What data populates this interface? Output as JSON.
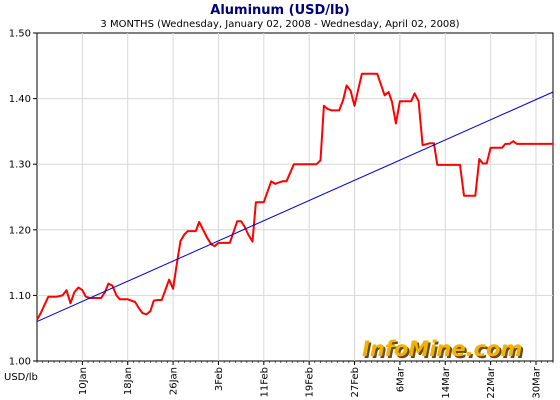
{
  "chart_data": {
    "type": "line",
    "title": "Aluminum (USD/lb)",
    "subtitle": "3 MONTHS (Wednesday, January 02, 2008  -  Wednesday, April 02, 2008)",
    "ylabel": "USD/lb",
    "xlabel": "",
    "ylim": [
      1.0,
      1.5
    ],
    "yticks": [
      "1.00",
      "1.10",
      "1.20",
      "1.30",
      "1.40",
      "1.50"
    ],
    "xlim_days": [
      0,
      91
    ],
    "x_tick_labels": [
      {
        "label": "10Jan",
        "day": 8
      },
      {
        "label": "18Jan",
        "day": 16
      },
      {
        "label": "26Jan",
        "day": 24
      },
      {
        "label": "3Feb",
        "day": 32
      },
      {
        "label": "11Feb",
        "day": 40
      },
      {
        "label": "19Feb",
        "day": 48
      },
      {
        "label": "27Feb",
        "day": 56
      },
      {
        "label": "6Mar",
        "day": 64
      },
      {
        "label": "14Mar",
        "day": 72
      },
      {
        "label": "22Mar",
        "day": 80
      },
      {
        "label": "30Mar",
        "day": 88
      }
    ],
    "grid": true,
    "colors": {
      "price": "#ff0000",
      "trend": "#0000cc",
      "grid": "#d8d8d8",
      "title": "#00007a"
    },
    "series": [
      {
        "type": "line",
        "color": "#ff0000",
        "x_day": [
          0,
          0.6,
          1.3,
          2.0,
          3.5,
          4.5,
          5.2,
          5.9,
          6.6,
          7.3,
          8.0,
          8.6,
          9.3,
          10.0,
          11.3,
          12.0,
          12.6,
          13.3,
          14.0,
          14.6,
          15.3,
          16.0,
          17.3,
          18.0,
          18.6,
          19.3,
          20.0,
          20.6,
          21.3,
          22.0,
          23.3,
          24.0,
          24.6,
          25.3,
          26.0,
          26.6,
          27.3,
          28.0,
          28.6,
          30.0,
          30.7,
          31.3,
          32.0,
          32.6,
          33.3,
          34.0,
          35.3,
          36.0,
          36.6,
          37.3,
          38.0,
          38.6,
          39.3,
          40.0,
          41.3,
          42.0,
          42.6,
          43.3,
          44.0,
          45.3,
          46.0,
          46.6,
          47.3,
          48.0,
          49.3,
          50.0,
          50.6,
          51.3,
          52.0,
          53.3,
          54.0,
          54.6,
          55.3,
          56.0,
          57.3,
          58.0,
          58.6,
          59.3,
          60.0,
          61.3,
          62.0,
          62.6,
          63.3,
          64.0,
          65.3,
          66.0,
          66.6,
          67.3,
          68.0,
          69.3,
          70.0,
          70.6,
          71.3,
          72.0,
          73.3,
          74.0,
          74.6,
          75.3,
          76.0,
          77.3,
          78.0,
          78.6,
          79.3,
          80.0,
          80.6,
          81.3,
          82.0,
          82.6,
          83.3,
          84.0,
          84.6,
          85.3,
          86.0,
          86.6,
          87.3,
          88.0,
          88.6,
          89.3,
          90.0,
          90.6,
          91.0
        ],
        "values": [
          1.063,
          1.072,
          1.085,
          1.098,
          1.098,
          1.1,
          1.108,
          1.088,
          1.105,
          1.112,
          1.108,
          1.098,
          1.096,
          1.096,
          1.096,
          1.105,
          1.118,
          1.115,
          1.1,
          1.094,
          1.094,
          1.094,
          1.09,
          1.08,
          1.073,
          1.071,
          1.076,
          1.092,
          1.093,
          1.093,
          1.124,
          1.11,
          1.145,
          1.183,
          1.193,
          1.198,
          1.198,
          1.198,
          1.212,
          1.188,
          1.178,
          1.175,
          1.18,
          1.18,
          1.18,
          1.18,
          1.213,
          1.213,
          1.205,
          1.192,
          1.182,
          1.242,
          1.242,
          1.242,
          1.274,
          1.27,
          1.272,
          1.274,
          1.274,
          1.3,
          1.3,
          1.3,
          1.3,
          1.3,
          1.3,
          1.306,
          1.389,
          1.384,
          1.382,
          1.382,
          1.398,
          1.42,
          1.412,
          1.389,
          1.438,
          1.438,
          1.438,
          1.438,
          1.438,
          1.405,
          1.41,
          1.395,
          1.362,
          1.396,
          1.396,
          1.396,
          1.408,
          1.396,
          1.329,
          1.332,
          1.332,
          1.299,
          1.299,
          1.299,
          1.299,
          1.299,
          1.299,
          1.252,
          1.252,
          1.252,
          1.308,
          1.301,
          1.301,
          1.325,
          1.325,
          1.325,
          1.325,
          1.331,
          1.331,
          1.335,
          1.331,
          1.331,
          1.331,
          1.331,
          1.331,
          1.331,
          1.331,
          1.331,
          1.331,
          1.331,
          1.331
        ]
      },
      {
        "type": "line",
        "color": "#0000cc",
        "x_day": [
          0,
          91
        ],
        "values": [
          1.06,
          1.41
        ]
      }
    ]
  },
  "watermark": {
    "text": "InfoMine.com"
  }
}
